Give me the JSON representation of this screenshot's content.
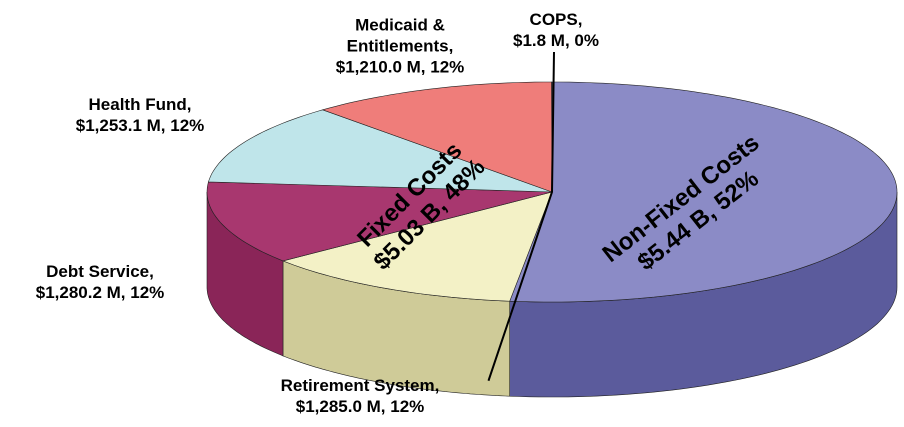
{
  "chart_data": {
    "type": "pie3d",
    "categories": [
      "Non-Fixed Costs",
      "Retirement System,",
      "Debt Service,",
      "Health Fund,",
      "Medicaid & Entitlements,",
      "COPS,"
    ],
    "values": [
      5440,
      1285.0,
      1280.2,
      1253.1,
      1210.0,
      1.8
    ],
    "value_labels": [
      "$5.44 B, 52%",
      "$1,285.0 M, 12%",
      "$1,280.2 M, 12%",
      "$1,253.1 M, 12%",
      "$1,210.0 M, 12%",
      "$1.8 M, 0%"
    ],
    "colors": [
      "#8b8bc6",
      "#f3f1c6",
      "#a8376f",
      "#bfe5ea",
      "#ef7d7a",
      "#d9d9d9"
    ],
    "side_colors": [
      "#5b5b9c",
      "#cfcb98",
      "#8a2558",
      "#95bcc2",
      "#c45a58",
      "#aaaaaa"
    ],
    "groups": [
      {
        "name": "Fixed Costs",
        "value": 5030,
        "value_label": "$5.03 B, 48%"
      }
    ]
  }
}
